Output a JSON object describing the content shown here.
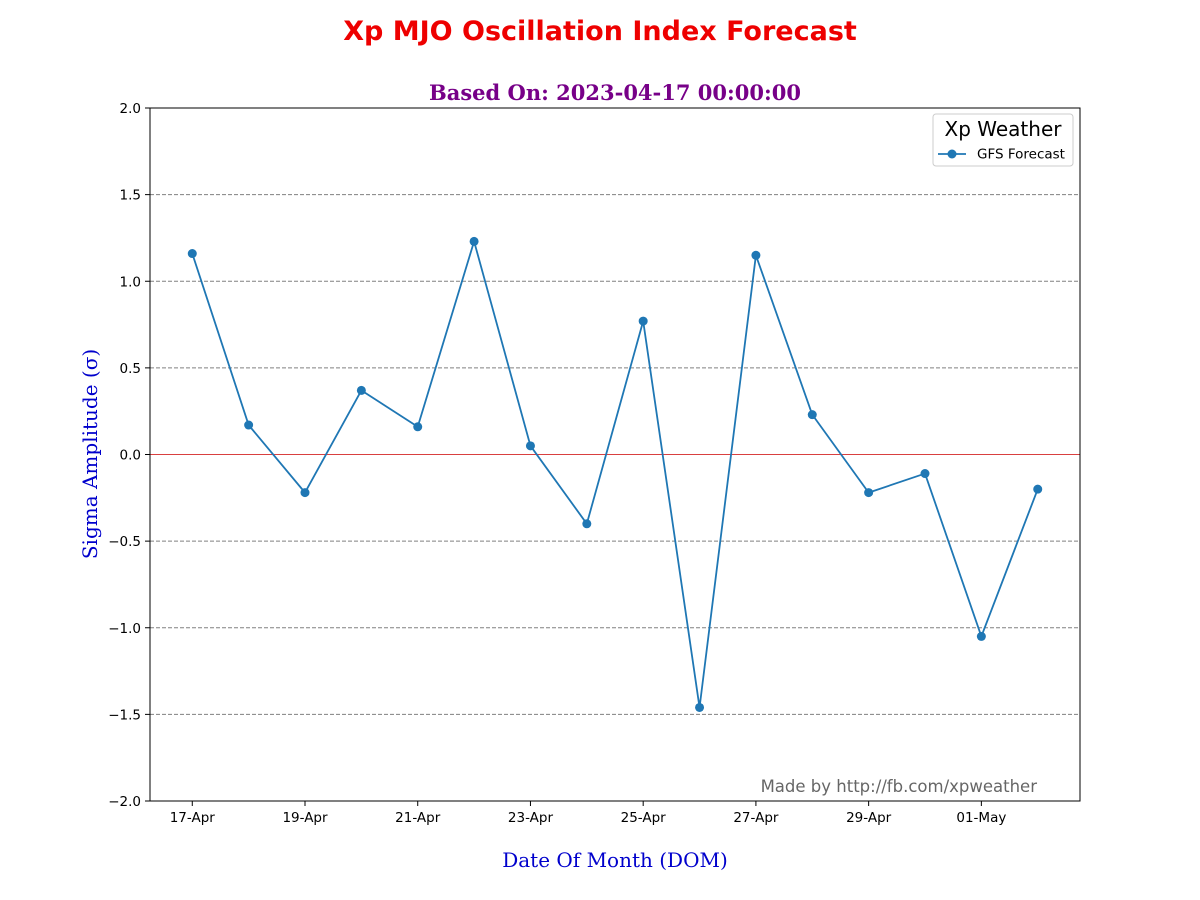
{
  "chart_data": {
    "type": "line",
    "title": "Xp MJO Oscillation Index Forecast",
    "subtitle": "Based On: 2023-04-17 00:00:00",
    "xlabel": "Date Of Month (DOM)",
    "ylabel": "Sigma Amplitude (σ)",
    "ylim": [
      -2.0,
      2.0
    ],
    "yticks": [
      -2.0,
      -1.5,
      -1.0,
      -0.5,
      0.0,
      0.5,
      1.0,
      1.5,
      2.0
    ],
    "ytick_labels": [
      "−2.0",
      "−1.5",
      "−1.0",
      "−0.5",
      "0.0",
      "0.5",
      "1.0",
      "1.5",
      "2.0"
    ],
    "x": [
      "2023-04-17",
      "2023-04-18",
      "2023-04-19",
      "2023-04-20",
      "2023-04-21",
      "2023-04-22",
      "2023-04-23",
      "2023-04-24",
      "2023-04-25",
      "2023-04-26",
      "2023-04-27",
      "2023-04-28",
      "2023-04-29",
      "2023-04-30",
      "2023-05-01",
      "2023-05-02"
    ],
    "xticks": [
      "2023-04-17",
      "2023-04-19",
      "2023-04-21",
      "2023-04-23",
      "2023-04-25",
      "2023-04-27",
      "2023-04-29",
      "2023-05-01"
    ],
    "xtick_labels": [
      "17-Apr",
      "19-Apr",
      "21-Apr",
      "23-Apr",
      "25-Apr",
      "27-Apr",
      "29-Apr",
      "01-May"
    ],
    "series": [
      {
        "name": "GFS Forecast",
        "color": "#1f77b4",
        "values": [
          1.16,
          0.17,
          -0.22,
          0.37,
          0.16,
          1.23,
          0.05,
          -0.4,
          0.77,
          -1.46,
          1.15,
          0.23,
          -0.22,
          -0.11,
          -1.05,
          -0.2
        ]
      }
    ],
    "zero_line_color": "#cc0000",
    "grid": "y-dashed",
    "legend": {
      "title": "Xp Weather",
      "placement": "top-right"
    },
    "watermark": "Made by http://fb.com/xpweather",
    "title_color": "#ee0000",
    "subtitle_color": "#770088",
    "axis_label_color": "#0000cc"
  }
}
